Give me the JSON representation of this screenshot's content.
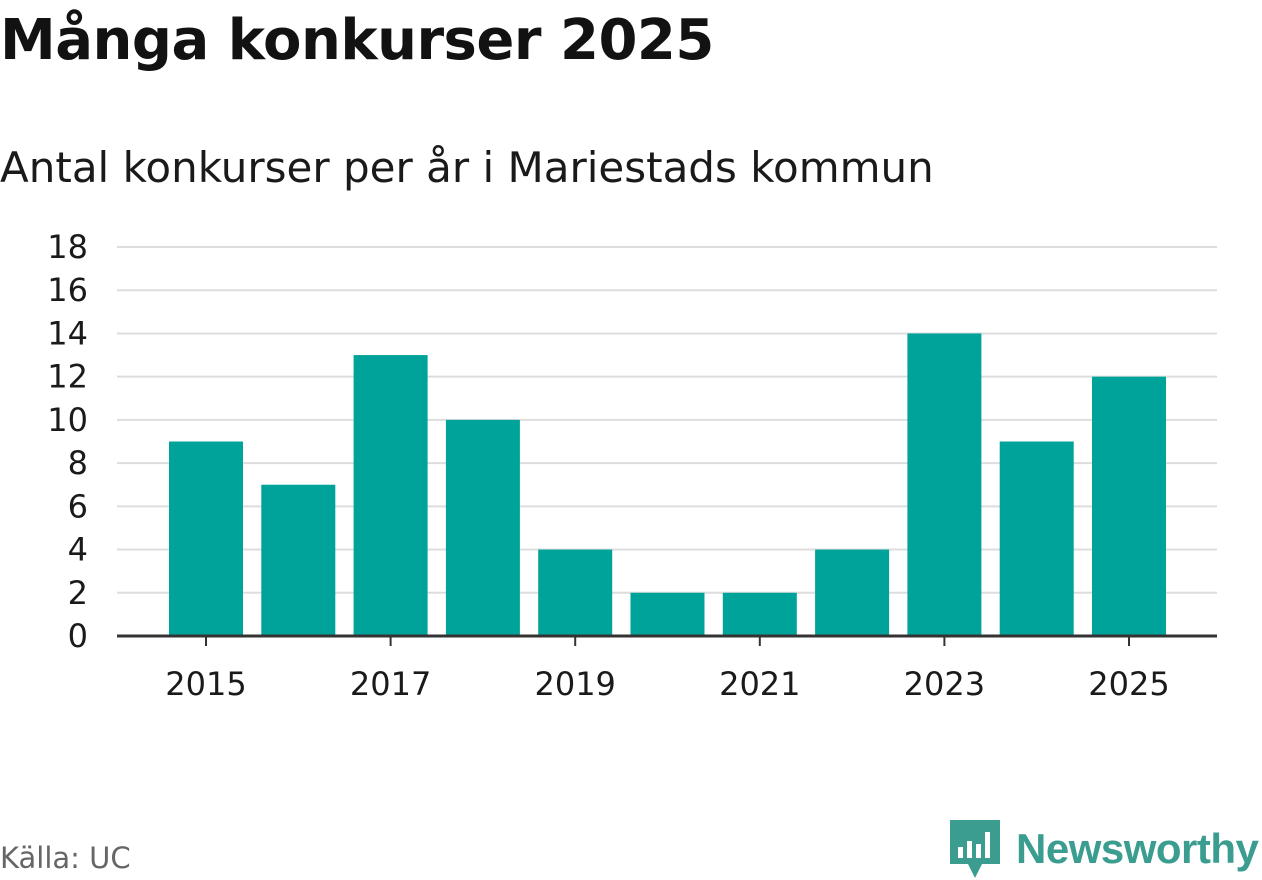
{
  "title": "Många konkurser 2025",
  "subtitle": "Antal konkurser per år i Mariestads kommun",
  "source": "Källa: UC",
  "brand": {
    "name": "Newsworthy",
    "icon": "newsworthy-logo-icon",
    "color": "#3a9d90"
  },
  "colors": {
    "bar": "#00a399",
    "grid": "#dddddd",
    "axis": "#333333"
  },
  "chart_data": {
    "type": "bar",
    "title": "Många konkurser 2025",
    "subtitle": "Antal konkurser per år i Mariestads kommun",
    "xlabel": "",
    "ylabel": "",
    "categories": [
      "2015",
      "2016",
      "2017",
      "2018",
      "2019",
      "2020",
      "2021",
      "2022",
      "2023",
      "2024",
      "2025"
    ],
    "values": [
      9,
      7,
      13,
      10,
      4,
      2,
      2,
      4,
      14,
      9,
      12
    ],
    "x_tick_labels": [
      "2015",
      "2017",
      "2019",
      "2021",
      "2023",
      "2025"
    ],
    "y_ticks": [
      0,
      2,
      4,
      6,
      8,
      10,
      12,
      14,
      16,
      18
    ],
    "ylim": [
      0,
      18
    ],
    "grid": true,
    "legend": "none"
  }
}
